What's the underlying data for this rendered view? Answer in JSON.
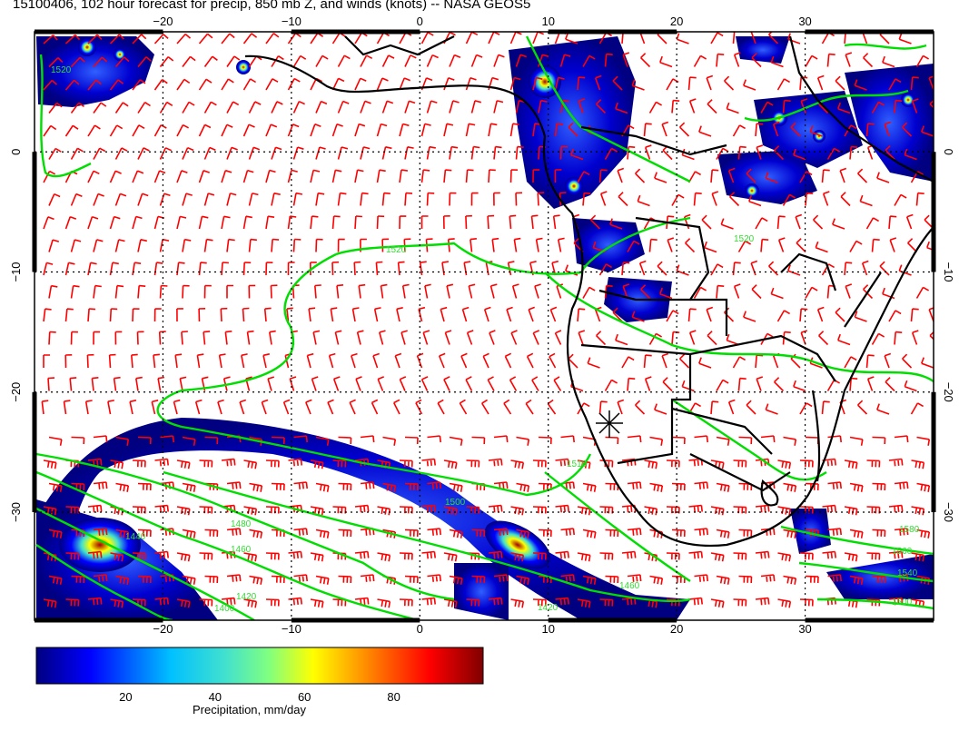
{
  "title": "15100406, 102 hour forecast for precip, 850 mb Z, and winds (knots) -- NASA GEOS5",
  "map": {
    "lon_range": [
      -30,
      40
    ],
    "lat_range": [
      -39,
      10
    ],
    "lon_ticks": [
      -20,
      -10,
      0,
      10,
      20,
      30
    ],
    "lat_ticks": [
      0,
      -10,
      -20,
      -30
    ],
    "lon_tick_labels": [
      "−20",
      "−10",
      "0",
      "10",
      "20",
      "30"
    ],
    "lat_tick_labels": [
      "0",
      "−10",
      "−20",
      "−30"
    ],
    "gridlines": "dotted",
    "contour_labels": [
      "1520",
      "1520",
      "1520",
      "1510",
      "1500",
      "1480",
      "1460",
      "1440",
      "1420",
      "1400",
      "1460",
      "1420",
      "1580",
      "1560",
      "1540",
      "1500"
    ],
    "colors": {
      "precip_contours": "#00dd00",
      "wind_barbs": "#ff0000",
      "coastlines": "#000000"
    }
  },
  "colorbar": {
    "label": "Precipitation, mm/day",
    "ticks": [
      20,
      40,
      60,
      80
    ],
    "range": [
      0,
      100
    ],
    "colormap": [
      "#000080",
      "#0000ff",
      "#00c0ff",
      "#40e0d0",
      "#80ff80",
      "#ffff00",
      "#ff8000",
      "#ff0000",
      "#800000"
    ]
  }
}
